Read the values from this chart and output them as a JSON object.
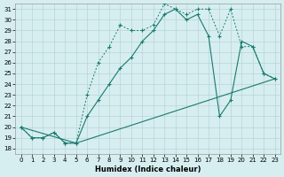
{
  "xlabel": "Humidex (Indice chaleur)",
  "bg_color": "#d6eef0",
  "grid_color": "#b8d4d8",
  "line_color": "#1a7a6e",
  "xlim": [
    -0.5,
    23.5
  ],
  "ylim": [
    17.5,
    31.5
  ],
  "xticks": [
    0,
    1,
    2,
    3,
    4,
    5,
    6,
    7,
    8,
    9,
    10,
    11,
    12,
    13,
    14,
    15,
    16,
    17,
    18,
    19,
    20,
    21,
    22,
    23
  ],
  "yticks": [
    18,
    19,
    20,
    21,
    22,
    23,
    24,
    25,
    26,
    27,
    28,
    29,
    30,
    31
  ],
  "line1_dotted": {
    "x": [
      0,
      1,
      2,
      3,
      4,
      5,
      6,
      7,
      8,
      9,
      10,
      11,
      12,
      13,
      14,
      15,
      16,
      17,
      18,
      19,
      20,
      21,
      22,
      23
    ],
    "y": [
      20.0,
      19.0,
      19.0,
      19.5,
      18.5,
      18.5,
      23.0,
      26.0,
      27.5,
      29.5,
      29.0,
      29.0,
      29.5,
      31.5,
      31.0,
      30.5,
      31.0,
      31.0,
      28.5,
      31.0,
      27.5,
      27.5,
      25.0,
      24.5
    ]
  },
  "line2_solid": {
    "x": [
      0,
      1,
      2,
      3,
      4,
      5,
      6,
      7,
      8,
      9,
      10,
      11,
      12,
      13,
      14,
      15,
      16,
      17,
      18,
      19,
      20,
      21,
      22,
      23
    ],
    "y": [
      20.0,
      19.0,
      19.0,
      19.5,
      18.5,
      18.5,
      21.0,
      22.5,
      24.0,
      25.5,
      26.5,
      28.0,
      29.0,
      30.5,
      31.0,
      30.0,
      30.5,
      28.5,
      21.0,
      22.5,
      28.0,
      27.5,
      25.0,
      24.5
    ]
  },
  "line3_diagonal": {
    "x": [
      0,
      5,
      23
    ],
    "y": [
      20.0,
      18.5,
      24.5
    ]
  }
}
